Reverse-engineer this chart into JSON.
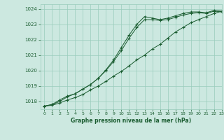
{
  "xlabel": "Graphe pression niveau de la mer (hPa)",
  "ylim": [
    1017.5,
    1024.3
  ],
  "xlim": [
    -0.5,
    23
  ],
  "yticks": [
    1018,
    1019,
    1020,
    1021,
    1022,
    1023,
    1024
  ],
  "xticks": [
    0,
    1,
    2,
    3,
    4,
    5,
    6,
    7,
    8,
    9,
    10,
    11,
    12,
    13,
    14,
    15,
    16,
    17,
    18,
    19,
    20,
    21,
    22,
    23
  ],
  "background_color": "#cce8e0",
  "grid_color": "#99ccbb",
  "line_color": "#1a5c30",
  "line1_x": [
    0,
    1,
    2,
    3,
    4,
    5,
    6,
    7,
    8,
    9,
    10,
    11,
    12,
    13,
    14,
    15,
    16,
    17,
    18,
    19,
    20,
    21,
    22,
    23
  ],
  "line1_y": [
    1017.7,
    1017.75,
    1017.9,
    1018.1,
    1018.25,
    1018.45,
    1018.75,
    1019.0,
    1019.3,
    1019.65,
    1019.95,
    1020.3,
    1020.7,
    1021.0,
    1021.4,
    1021.7,
    1022.1,
    1022.5,
    1022.8,
    1023.1,
    1023.3,
    1023.5,
    1023.7,
    1023.85
  ],
  "line2_x": [
    0,
    1,
    2,
    3,
    4,
    5,
    6,
    7,
    8,
    9,
    10,
    11,
    12,
    13,
    14,
    15,
    16,
    17,
    18,
    19,
    20,
    21,
    22,
    23
  ],
  "line2_y": [
    1017.7,
    1017.8,
    1018.0,
    1018.3,
    1018.5,
    1018.8,
    1019.1,
    1019.5,
    1020.0,
    1020.6,
    1021.3,
    1022.1,
    1022.8,
    1023.3,
    1023.3,
    1023.25,
    1023.3,
    1023.45,
    1023.6,
    1023.7,
    1023.75,
    1023.7,
    1023.85,
    1023.8
  ],
  "line3_x": [
    0,
    1,
    2,
    3,
    4,
    5,
    6,
    7,
    8,
    9,
    10,
    11,
    12,
    13,
    14,
    15,
    16,
    17,
    18,
    19,
    20,
    21,
    22,
    23
  ],
  "line3_y": [
    1017.7,
    1017.8,
    1018.1,
    1018.35,
    1018.5,
    1018.8,
    1019.1,
    1019.5,
    1020.05,
    1020.7,
    1021.5,
    1022.3,
    1023.0,
    1023.5,
    1023.4,
    1023.3,
    1023.4,
    1023.55,
    1023.7,
    1023.8,
    1023.8,
    1023.75,
    1023.9,
    1023.85
  ]
}
